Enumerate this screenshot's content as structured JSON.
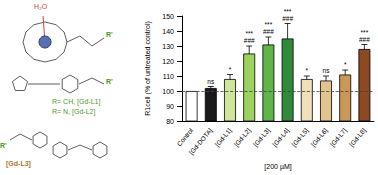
{
  "chart_data": {
    "type": "bar",
    "categories": [
      "Control",
      "[Gd-DOTA]",
      "[Gd-L1]",
      "[Gd-L2]",
      "[Gd-L3]",
      "[Gd-L4]",
      "[Gd-L5]",
      "[Gd-L6]",
      "[Gd-L7]",
      "[Gd-L8]"
    ],
    "values": [
      100,
      102,
      108,
      125,
      131,
      135,
      108,
      107,
      111,
      128
    ],
    "errors": [
      0,
      1,
      3,
      5,
      5,
      10,
      2,
      3,
      3,
      3
    ],
    "significance": [
      [],
      [
        "ns"
      ],
      [
        "*"
      ],
      [
        "***",
        "###"
      ],
      [
        "***",
        "###"
      ],
      [
        "***",
        "###"
      ],
      [
        "*"
      ],
      [
        "ns"
      ],
      [
        "*"
      ],
      [
        "***",
        "###"
      ]
    ],
    "colors": [
      "#ffffff",
      "#1a1a1a",
      "#cfe59a",
      "#9bd35e",
      "#5fb548",
      "#2f8a3a",
      "#f1dfb8",
      "#e2c48d",
      "#c99758",
      "#8b4a1f"
    ],
    "baseline": 100,
    "x_label": "[200 µM]",
    "y_label": "R1cell (% of untreated control)",
    "ylim": [
      80,
      150
    ],
    "yticks": [
      80,
      90,
      100,
      110,
      120,
      130,
      140,
      150
    ],
    "grid": false
  },
  "figure_labels": {
    "water": "H₂O",
    "substituent": "R'",
    "ligand_a": "R= CH, [Gd-L1]",
    "ligand_b": "R= N, [Gd-L2]",
    "ligand_c": "[Gd-L3]"
  }
}
